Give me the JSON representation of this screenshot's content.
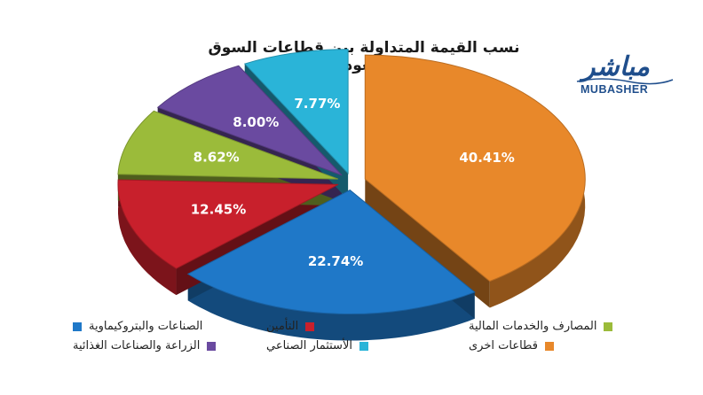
{
  "chart_data": {
    "type": "pie",
    "title": "نسب القيمة المتداولة بين قطاعات السوق السعودي",
    "slices": [
      {
        "label": "قطاعات اخرى",
        "value": 40.41,
        "value_label": "40.41%",
        "color": "#e8882a"
      },
      {
        "label": "الصناعات والبتروكيماوية",
        "value": 22.74,
        "value_label": "22.74%",
        "color": "#1f78c8"
      },
      {
        "label": "التأمين",
        "value": 12.45,
        "value_label": "12.45%",
        "color": "#c8202c"
      },
      {
        "label": "المصارف والخدمات المالية",
        "value": 8.62,
        "value_label": "8.62%",
        "color": "#9bbb3a"
      },
      {
        "label": "الزراعة والصناعات الغذائية",
        "value": 8.0,
        "value_label": "8.00%",
        "color": "#6a4aa0"
      },
      {
        "label": "الأستثمار الصناعي",
        "value": 7.77,
        "value_label": "7.77%",
        "color": "#2ab4d8"
      }
    ],
    "legend_placement": "bottom"
  },
  "logo": {
    "arabic": "مباشر",
    "latin": "MUBASHER",
    "color": "#1f4e8c"
  }
}
